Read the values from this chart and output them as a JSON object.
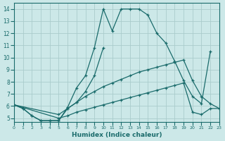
{
  "xlabel": "Humidex (Indice chaleur)",
  "bg_color": "#cce8e8",
  "grid_color": "#aacccc",
  "line_color": "#1a6b6b",
  "xlim": [
    0,
    23
  ],
  "ylim": [
    4.7,
    14.5
  ],
  "xticks": [
    0,
    1,
    2,
    3,
    4,
    5,
    6,
    7,
    8,
    9,
    10,
    11,
    12,
    13,
    14,
    15,
    16,
    17,
    18,
    19,
    20,
    21,
    22,
    23
  ],
  "yticks": [
    5,
    6,
    7,
    8,
    9,
    10,
    11,
    12,
    13,
    14
  ],
  "series": [
    {
      "x": [
        0,
        1,
        2,
        3,
        4,
        5,
        6,
        7,
        8,
        9,
        10,
        11,
        12,
        13,
        14,
        15,
        16,
        17,
        18,
        19,
        20,
        21,
        22
      ],
      "y": [
        6.1,
        5.8,
        5.2,
        4.8,
        4.8,
        4.8,
        5.9,
        7.5,
        8.5,
        10.8,
        14.0,
        12.2,
        14.0,
        14.0,
        14.0,
        13.5,
        12.0,
        11.2,
        9.7,
        8.1,
        6.8,
        6.2,
        10.5
      ]
    },
    {
      "x": [
        0,
        1,
        2,
        3,
        4,
        5,
        6,
        7,
        8,
        9,
        10
      ],
      "y": [
        6.1,
        5.8,
        5.2,
        4.8,
        4.8,
        4.8,
        5.8,
        6.3,
        7.2,
        8.5,
        10.8
      ]
    },
    {
      "x": [
        0,
        5,
        6,
        7,
        8,
        9,
        10,
        11,
        12,
        13,
        14,
        15,
        16,
        17,
        18,
        19,
        20,
        21,
        22,
        23
      ],
      "y": [
        6.1,
        5.3,
        5.8,
        6.3,
        6.8,
        7.2,
        7.6,
        7.9,
        8.2,
        8.5,
        8.8,
        9.0,
        9.2,
        9.4,
        9.6,
        9.8,
        8.1,
        6.8,
        6.2,
        5.8
      ]
    },
    {
      "x": [
        0,
        5,
        6,
        7,
        8,
        9,
        10,
        11,
        12,
        13,
        14,
        15,
        16,
        17,
        18,
        19,
        20,
        21,
        22,
        23
      ],
      "y": [
        6.1,
        5.0,
        5.2,
        5.5,
        5.7,
        5.9,
        6.1,
        6.3,
        6.5,
        6.7,
        6.9,
        7.1,
        7.3,
        7.5,
        7.7,
        7.9,
        5.5,
        5.3,
        5.8,
        5.8
      ]
    }
  ]
}
